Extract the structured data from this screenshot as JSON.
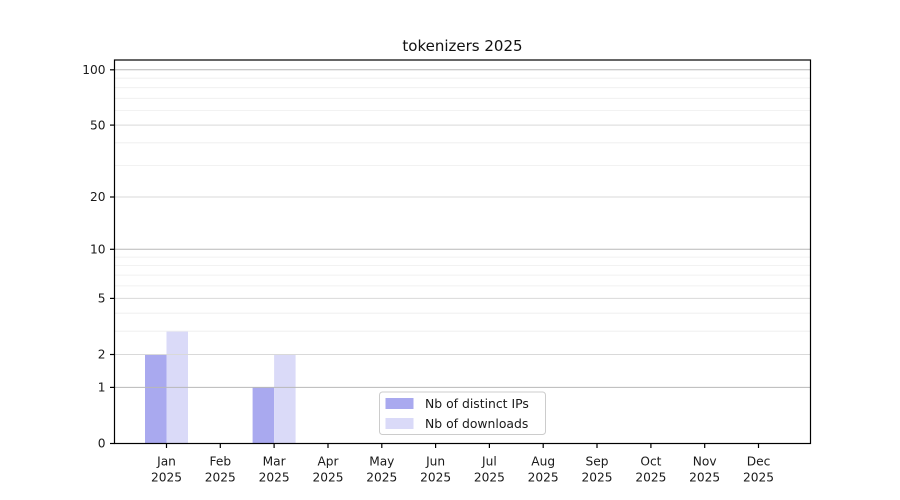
{
  "chart_data": {
    "type": "bar",
    "title": "tokenizers 2025",
    "categories": [
      "Jan",
      "Feb",
      "Mar",
      "Apr",
      "May",
      "Jun",
      "Jul",
      "Aug",
      "Sep",
      "Oct",
      "Nov",
      "Dec"
    ],
    "category_year": "2025",
    "series": [
      {
        "name": "Nb of distinct IPs",
        "color": "#a9a9ef",
        "values": [
          2,
          0,
          1,
          0,
          0,
          0,
          0,
          0,
          0,
          0,
          0,
          0
        ]
      },
      {
        "name": "Nb of downloads",
        "color": "#dadaf8",
        "values": [
          3,
          0,
          2,
          0,
          0,
          0,
          0,
          0,
          0,
          0,
          0,
          0
        ]
      }
    ],
    "yscale": "log1p",
    "ylim": [
      0,
      113
    ],
    "yticks": [
      0,
      1,
      2,
      5,
      10,
      20,
      50,
      100
    ],
    "minor_yticks": [
      3,
      4,
      6,
      7,
      8,
      9,
      30,
      40,
      60,
      70,
      80,
      90
    ],
    "grid": true,
    "legend_position": "lower center",
    "colors": {
      "grid_major": "#b8b8b8",
      "grid_mid": "#d9d9d9",
      "grid_minor": "#ededed",
      "axis": "#000000",
      "tick_text": "#1a1a1a",
      "legend_border": "#cccccc",
      "legend_bg": "#ffffff"
    }
  }
}
